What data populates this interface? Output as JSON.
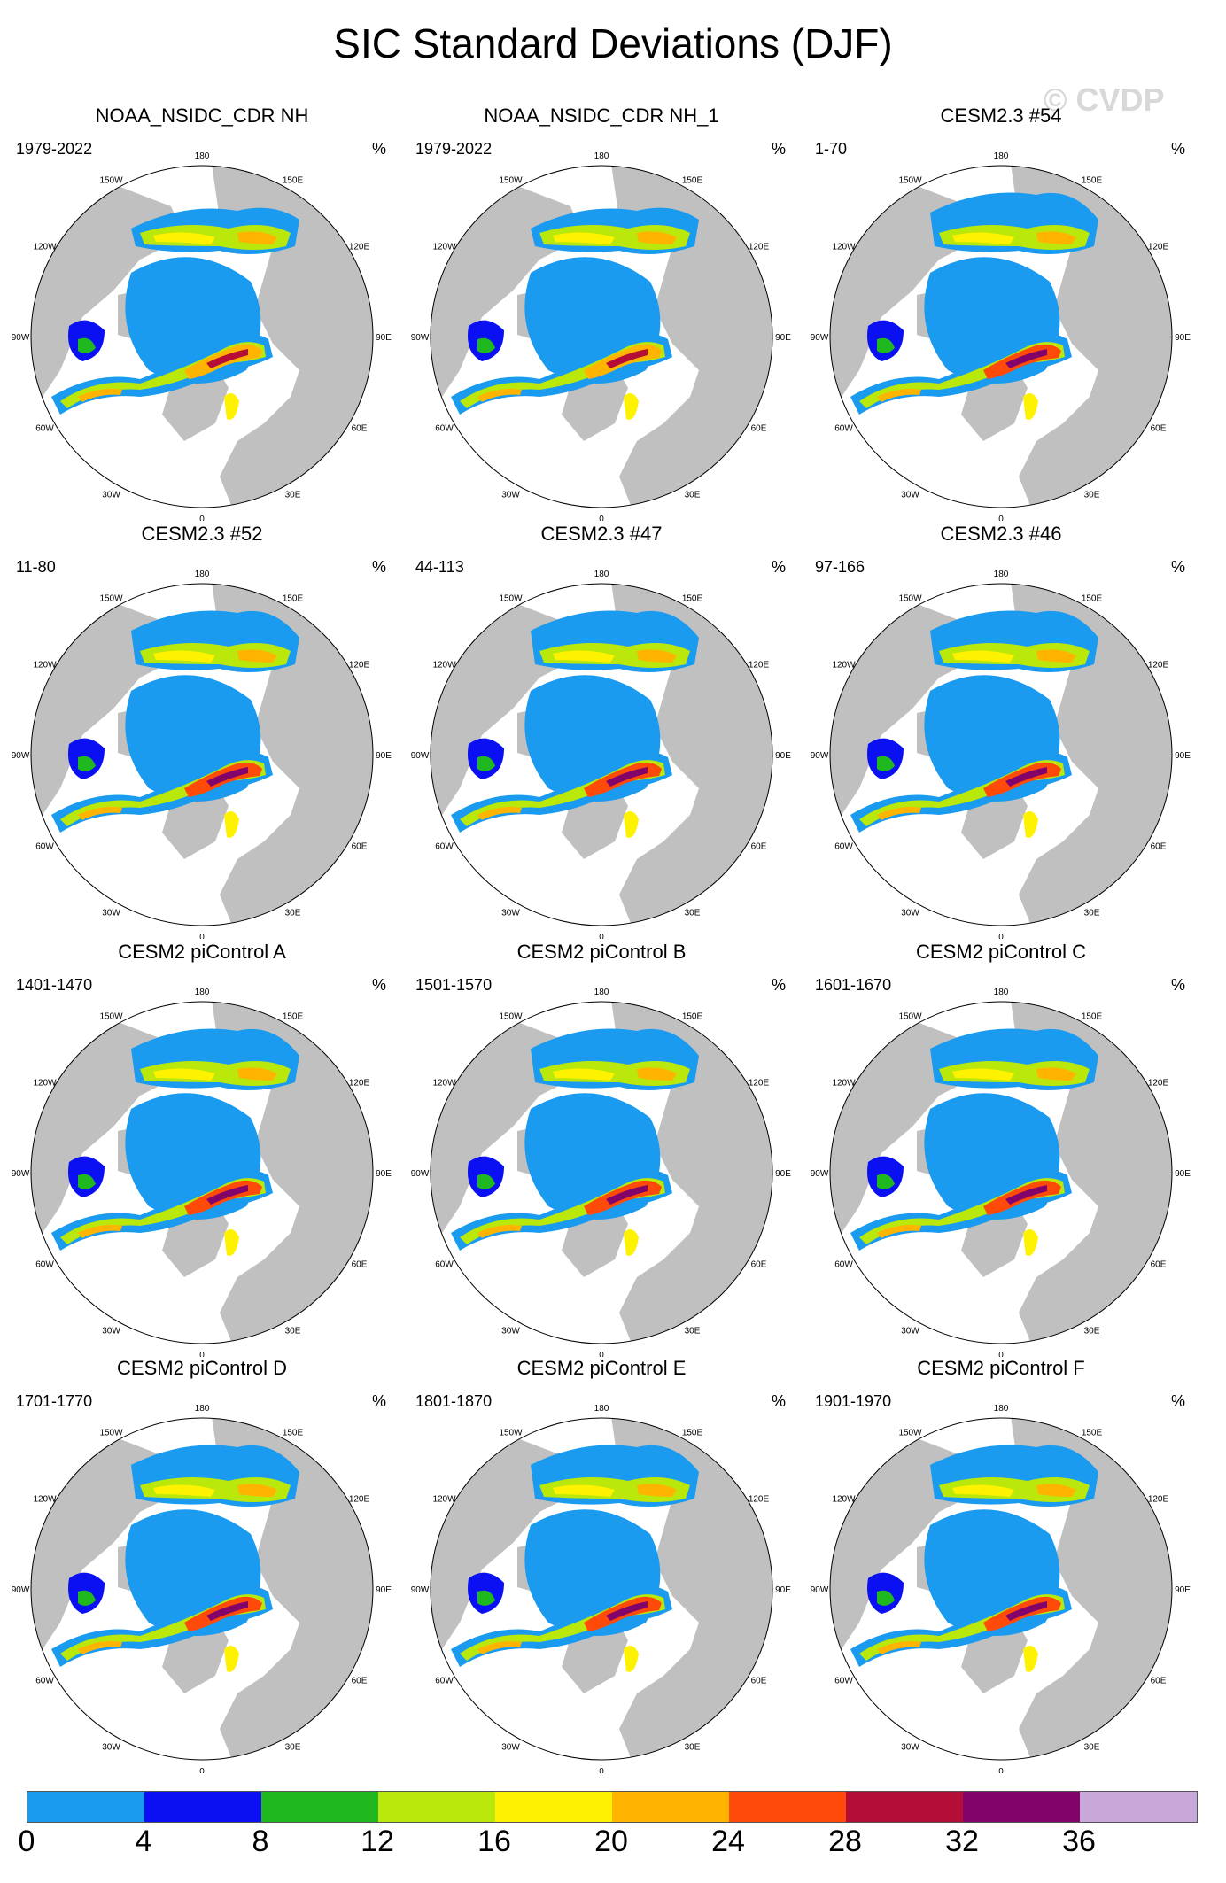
{
  "title": "SIC Standard Deviations (DJF)",
  "watermark": "© CVDP",
  "unit": "%",
  "longitude_labels": [
    "180",
    "150E",
    "120E",
    "90E",
    "60E",
    "30E",
    "0",
    "30W",
    "60W",
    "90W",
    "120W",
    "150W"
  ],
  "panels": [
    {
      "title": "NOAA_NSIDC_CDR NH",
      "years": "1979-2022",
      "variant": "obs"
    },
    {
      "title": "NOAA_NSIDC_CDR NH_1",
      "years": "1979-2022",
      "variant": "obs"
    },
    {
      "title": "CESM2.3 #54",
      "years": "1-70",
      "variant": "model"
    },
    {
      "title": "CESM2.3 #52",
      "years": "11-80",
      "variant": "model"
    },
    {
      "title": "CESM2.3 #47",
      "years": "44-113",
      "variant": "model"
    },
    {
      "title": "CESM2.3 #46",
      "years": "97-166",
      "variant": "model"
    },
    {
      "title": "CESM2 piControl A",
      "years": "1401-1470",
      "variant": "pi"
    },
    {
      "title": "CESM2 piControl B",
      "years": "1501-1570",
      "variant": "pi"
    },
    {
      "title": "CESM2 piControl C",
      "years": "1601-1670",
      "variant": "pi"
    },
    {
      "title": "CESM2 piControl D",
      "years": "1701-1770",
      "variant": "pi"
    },
    {
      "title": "CESM2 piControl E",
      "years": "1801-1870",
      "variant": "pi"
    },
    {
      "title": "CESM2 piControl F",
      "years": "1901-1970",
      "variant": "pi"
    }
  ],
  "colorbar": {
    "colors": [
      "#1a9bf0",
      "#0a10f2",
      "#1fb81f",
      "#b9e80a",
      "#fff200",
      "#ffb400",
      "#ff4a0a",
      "#b40d37",
      "#820369",
      "#c8a8d8"
    ],
    "ticks": [
      "0",
      "4",
      "8",
      "12",
      "16",
      "20",
      "24",
      "28",
      "32",
      "36"
    ]
  }
}
